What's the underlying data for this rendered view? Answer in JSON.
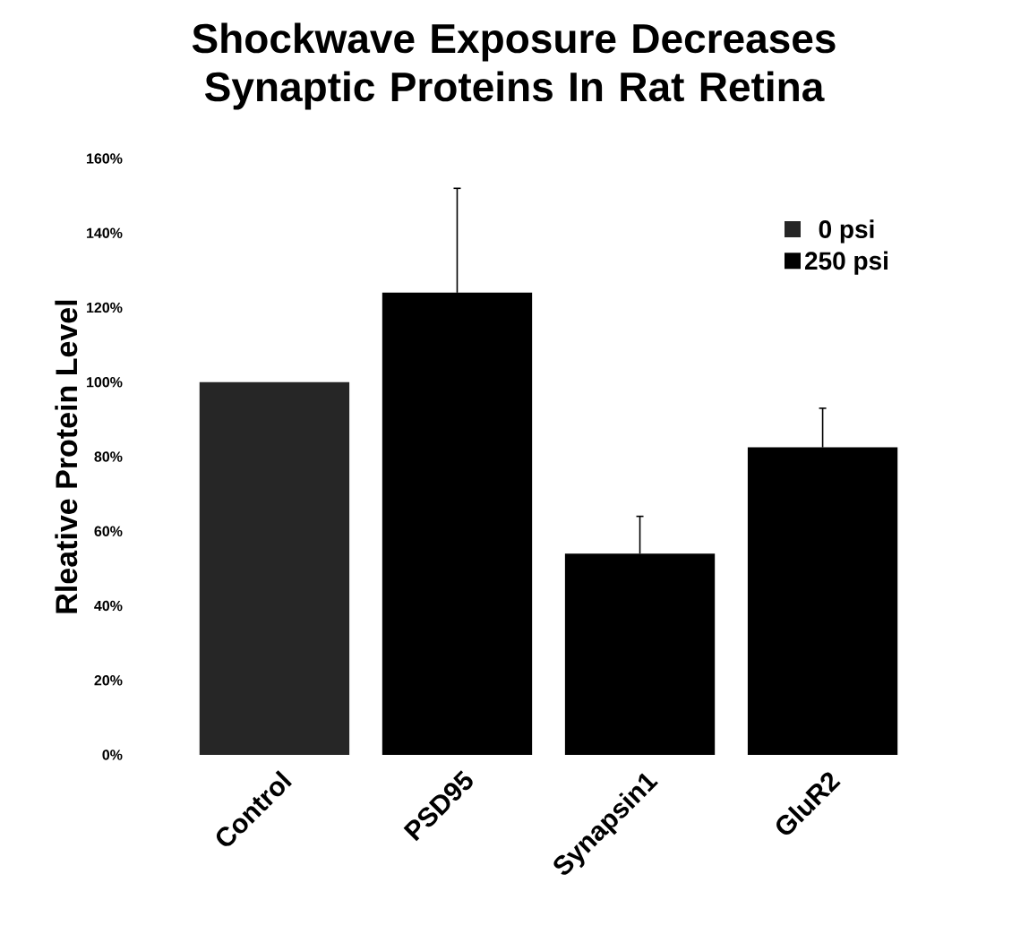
{
  "chart_data": {
    "type": "bar",
    "title": "Shockwave Exposure Decreases Synaptic Proteins In Rat Retina",
    "ylabel": "Rleative Protein Level",
    "categories": [
      "Control",
      "PSD95",
      "Synapsin1",
      "GluR2"
    ],
    "series": [
      {
        "name": "0 psi",
        "color": "#262626",
        "values": [
          100,
          null,
          null,
          null
        ]
      },
      {
        "name": "250 psi",
        "color": "#000000",
        "values": [
          null,
          124,
          54,
          82.5
        ],
        "errors": [
          null,
          [
            124,
            152
          ],
          [
            54,
            64
          ],
          [
            82.5,
            93
          ]
        ]
      }
    ],
    "ylim": [
      0,
      160
    ],
    "yticks": [
      {
        "value": 0,
        "label": "0%"
      },
      {
        "value": 20,
        "label": "20%"
      },
      {
        "value": 40,
        "label": "40%"
      },
      {
        "value": 60,
        "label": "60%"
      },
      {
        "value": 80,
        "label": "80%"
      },
      {
        "value": 100,
        "label": "100%"
      },
      {
        "value": 120,
        "label": "120%"
      },
      {
        "value": 140,
        "label": "140%"
      },
      {
        "value": 160,
        "label": "160%"
      }
    ],
    "legend": "top right",
    "grid": false
  }
}
